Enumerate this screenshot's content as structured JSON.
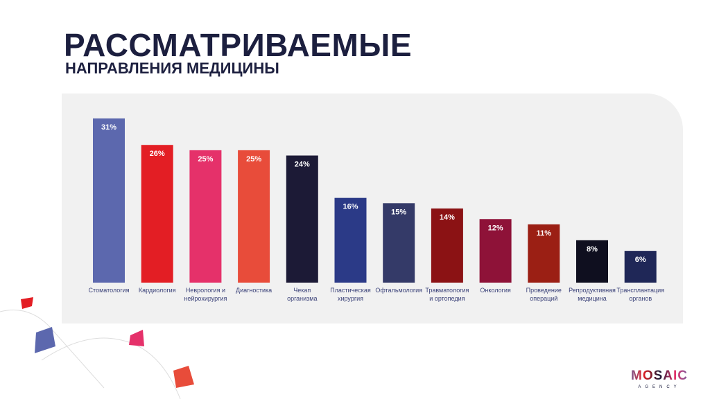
{
  "title": "РАССМАТРИВАЕМЫЕ",
  "subtitle": "НАПРАВЛЕНИЯ МЕДИЦИНЫ",
  "logo": {
    "name": "MOSAIC",
    "sub": "AGENCY"
  },
  "chart_data": {
    "type": "bar",
    "title": "",
    "xlabel": "",
    "ylabel": "",
    "ylim": [
      0,
      31
    ],
    "grid": false,
    "categories": [
      [
        "Стоматология"
      ],
      [
        "Кардиология"
      ],
      [
        "Неврология и",
        "нейрохирургия"
      ],
      [
        "Диагностика"
      ],
      [
        "Чекап",
        "организма"
      ],
      [
        "Пластическая",
        "хирургия"
      ],
      [
        "Офтальмология"
      ],
      [
        "Травматология",
        "и ортопедия"
      ],
      [
        "Онкология"
      ],
      [
        "Проведение",
        "операций"
      ],
      [
        "Репродуктивная",
        "медицина"
      ],
      [
        "Трансплантация",
        "органов"
      ]
    ],
    "values": [
      31,
      26,
      25,
      25,
      24,
      16,
      15,
      14,
      12,
      11,
      8,
      6
    ],
    "labels": [
      "31%",
      "26%",
      "25%",
      "25%",
      "24%",
      "16%",
      "15%",
      "14%",
      "12%",
      "11%",
      "8%",
      "6%"
    ],
    "colors": [
      "#5c68ae",
      "#e31e24",
      "#e5316a",
      "#e84c3a",
      "#1c1a36",
      "#2b3a87",
      "#343a68",
      "#8b1214",
      "#8e1238",
      "#9b1f14",
      "#0f0f1f",
      "#1f2757"
    ]
  }
}
